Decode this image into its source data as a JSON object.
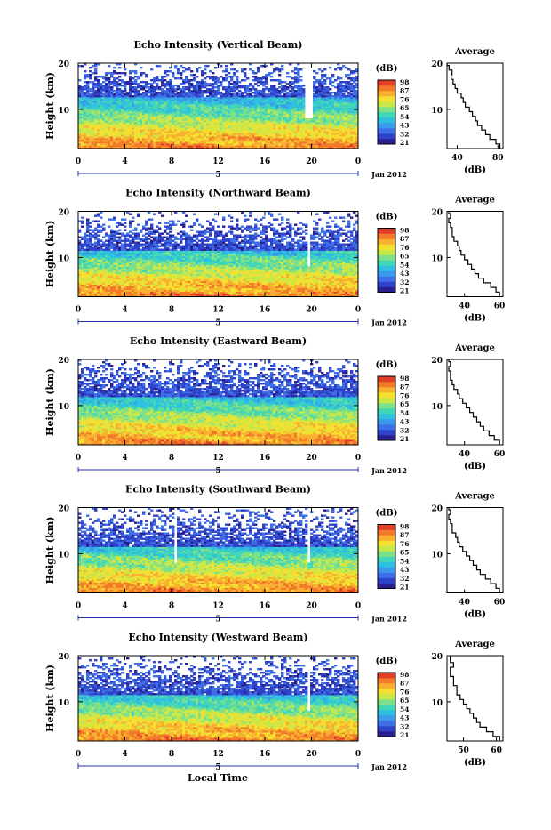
{
  "colors": {
    "colorscale": [
      "#2a1f8f",
      "#2f43c9",
      "#3f6fe6",
      "#3b9bea",
      "#2fc0e0",
      "#40d6b6",
      "#7fe08a",
      "#c8e84a",
      "#f3e030",
      "#f8b030",
      "#f27a2a",
      "#e0402a"
    ]
  },
  "shared": {
    "xlabel": "Local Time",
    "date_label": "Jan 2012",
    "day_label": "5",
    "ylabel": "Height (km)",
    "cbar_unit": "(dB)",
    "avg_title": "Average",
    "avg_xlabel": "(dB)"
  },
  "chart_data": [
    {
      "type": "heatmap",
      "title": "Echo Intensity (Vertical Beam)",
      "x_ticks": [
        "0",
        "4",
        "8",
        "12",
        "16",
        "20",
        "0"
      ],
      "x_range": [
        0,
        24
      ],
      "y_ticks": [
        "20",
        "10"
      ],
      "y_range": [
        1.5,
        20
      ],
      "colorbar_ticks": [
        "98",
        "87",
        "76",
        "65",
        "54",
        "43",
        "32",
        "21"
      ],
      "colorbar_range": [
        21,
        98
      ],
      "avg_profile": {
        "x_ticks": [
          "40",
          "80"
        ],
        "x_range": [
          30,
          85
        ],
        "heights": [
          2,
          3,
          4,
          5,
          6,
          7,
          8,
          9,
          10,
          11,
          12,
          13,
          14,
          15,
          16,
          17,
          18,
          19,
          20
        ],
        "values": [
          82,
          78,
          72,
          68,
          64,
          60,
          58,
          55,
          52,
          48,
          46,
          44,
          40,
          38,
          36,
          34,
          35,
          32,
          30
        ]
      },
      "gap_times": [
        19.6,
        19.9
      ],
      "dropout_top": 12.5
    },
    {
      "type": "heatmap",
      "title": "Echo Intensity (Northward Beam)",
      "x_ticks": [
        "0",
        "4",
        "8",
        "12",
        "16",
        "20",
        "0"
      ],
      "x_range": [
        0,
        24
      ],
      "y_ticks": [
        "20",
        "10"
      ],
      "y_range": [
        1.5,
        20
      ],
      "colorbar_ticks": [
        "98",
        "87",
        "76",
        "65",
        "54",
        "43",
        "32",
        "21"
      ],
      "colorbar_range": [
        21,
        98
      ],
      "avg_profile": {
        "x_ticks": [
          "40",
          "60"
        ],
        "x_range": [
          30,
          62
        ],
        "heights": [
          2,
          3,
          4,
          5,
          6,
          7,
          8,
          9,
          10,
          11,
          12,
          13,
          14,
          15,
          16,
          17,
          18,
          19,
          20
        ],
        "values": [
          60,
          58,
          55,
          51,
          48,
          46,
          44,
          42,
          40,
          38,
          37,
          36,
          34,
          33,
          33,
          32,
          31,
          32,
          31
        ]
      },
      "gap_times": [
        19.8
      ],
      "dropout_top": 11.5
    },
    {
      "type": "heatmap",
      "title": "Echo Intensity (Eastward Beam)",
      "x_ticks": [
        "0",
        "4",
        "8",
        "12",
        "16",
        "20",
        "0"
      ],
      "x_range": [
        0,
        24
      ],
      "y_ticks": [
        "20",
        "10"
      ],
      "y_range": [
        1.5,
        20
      ],
      "colorbar_ticks": [
        "98",
        "87",
        "76",
        "65",
        "54",
        "43",
        "32",
        "21"
      ],
      "colorbar_range": [
        21,
        98
      ],
      "avg_profile": {
        "x_ticks": [
          "40",
          "60"
        ],
        "x_range": [
          30,
          62
        ],
        "heights": [
          2,
          3,
          4,
          5,
          6,
          7,
          8,
          9,
          10,
          11,
          12,
          13,
          14,
          15,
          16,
          17,
          18,
          19,
          20
        ],
        "values": [
          60,
          57,
          54,
          51,
          49,
          47,
          45,
          43,
          41,
          39,
          37,
          36,
          34,
          33,
          32,
          32,
          31,
          32,
          31
        ]
      },
      "gap_times": [],
      "dropout_top": 12
    },
    {
      "type": "heatmap",
      "title": "Echo Intensity (Southward Beam)",
      "x_ticks": [
        "0",
        "4",
        "8",
        "12",
        "16",
        "20",
        "0"
      ],
      "x_range": [
        0,
        24
      ],
      "y_ticks": [
        "20",
        "10"
      ],
      "y_range": [
        1.5,
        20
      ],
      "colorbar_ticks": [
        "98",
        "87",
        "76",
        "65",
        "54",
        "43",
        "32",
        "21"
      ],
      "colorbar_range": [
        21,
        98
      ],
      "avg_profile": {
        "x_ticks": [
          "40",
          "60"
        ],
        "x_range": [
          30,
          62
        ],
        "heights": [
          2,
          3,
          4,
          5,
          6,
          7,
          8,
          9,
          10,
          11,
          12,
          13,
          14,
          15,
          16,
          17,
          18,
          19,
          20
        ],
        "values": [
          60,
          58,
          55,
          52,
          49,
          47,
          45,
          43,
          41,
          39,
          37,
          36,
          35,
          33,
          33,
          32,
          31,
          32,
          31
        ]
      },
      "gap_times": [
        8.4,
        19.8
      ],
      "dropout_top": 11.5
    },
    {
      "type": "heatmap",
      "title": "Echo Intensity (Westward Beam)",
      "x_ticks": [
        "0",
        "4",
        "8",
        "12",
        "16",
        "20",
        "0"
      ],
      "x_range": [
        0,
        24
      ],
      "y_ticks": [
        "20",
        "10"
      ],
      "y_range": [
        1.5,
        20
      ],
      "colorbar_ticks": [
        "98",
        "87",
        "76",
        "65",
        "54",
        "43",
        "32",
        "21"
      ],
      "colorbar_range": [
        21,
        98
      ],
      "avg_profile": {
        "x_ticks": [
          "50",
          "60"
        ],
        "x_range": [
          45,
          62
        ],
        "heights": [
          2,
          3,
          4,
          5,
          6,
          7,
          8,
          9,
          10,
          11,
          12,
          13,
          14,
          15,
          16,
          17,
          18,
          19,
          20
        ],
        "values": [
          61,
          59,
          57,
          55,
          54,
          53,
          52,
          51,
          50,
          49,
          48,
          48,
          47,
          47,
          46,
          46,
          47,
          46,
          46
        ]
      },
      "gap_times": [
        19.8
      ],
      "dropout_top": 11.5
    }
  ]
}
